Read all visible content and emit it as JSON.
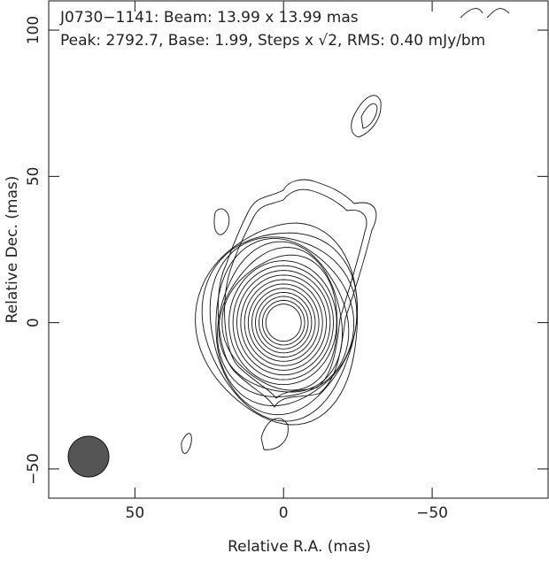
{
  "chart_data": {
    "type": "contour",
    "title_lines": [
      "J0730−1141: Beam: 13.99 x 13.99 mas",
      "Peak: 2792.7, Base: 1.99, Steps x √2, RMS: 0.40 mJy/bm"
    ],
    "x_label": "Relative R.A. (mas)",
    "y_label": "Relative Dec. (mas)",
    "xlim": [
      79,
      -89
    ],
    "ylim": [
      -60,
      110
    ],
    "xticks": [
      50,
      0,
      {
        "value": -50,
        "label": "−50"
      }
    ],
    "yticks": [
      {
        "value": -50,
        "label": "−50"
      },
      0,
      50,
      100
    ]
  }
}
